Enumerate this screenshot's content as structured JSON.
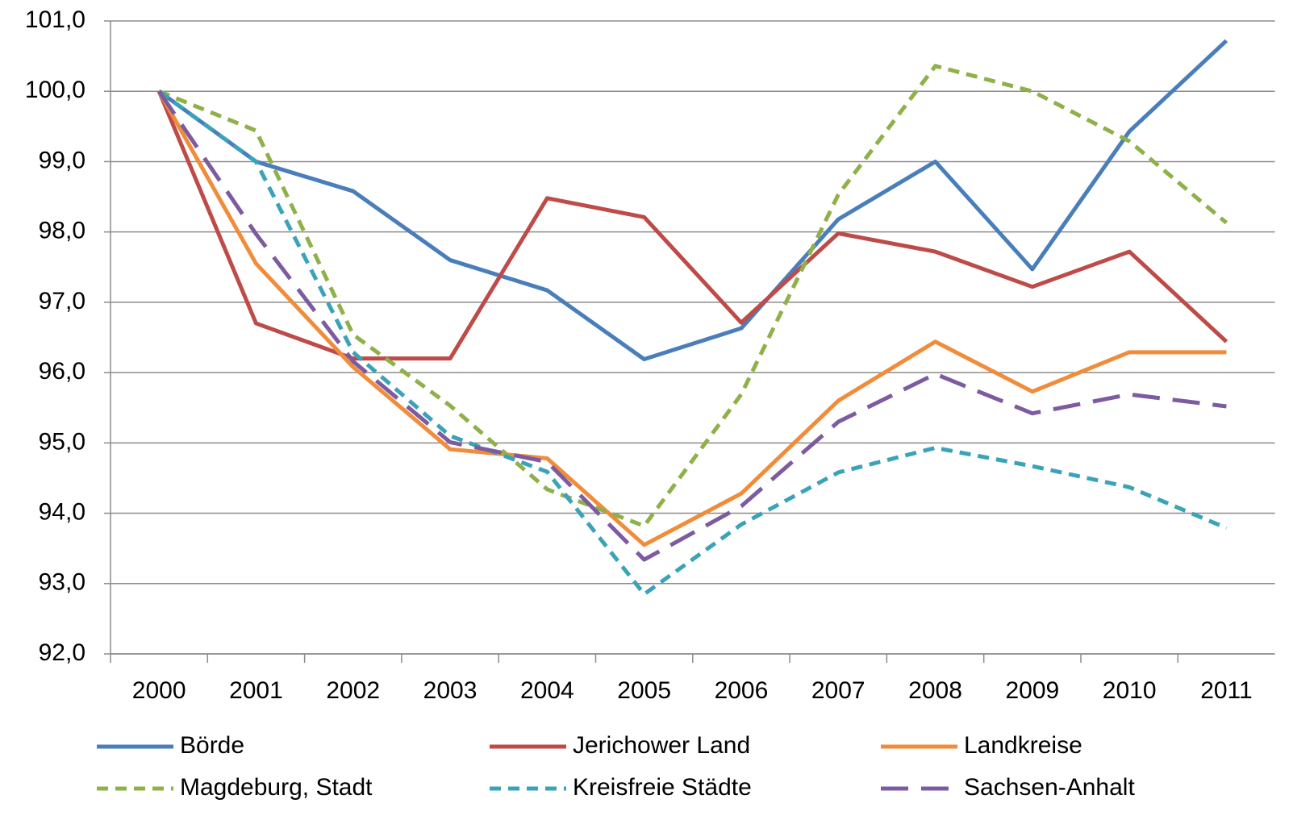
{
  "chart_data": {
    "type": "line",
    "categories": [
      "2000",
      "2001",
      "2002",
      "2003",
      "2004",
      "2005",
      "2006",
      "2007",
      "2008",
      "2009",
      "2010",
      "2011"
    ],
    "ylim": [
      92,
      101
    ],
    "yticks": [
      {
        "value": 92,
        "label": "92,0"
      },
      {
        "value": 93,
        "label": "93,0"
      },
      {
        "value": 94,
        "label": "94,0"
      },
      {
        "value": 95,
        "label": "95,0"
      },
      {
        "value": 96,
        "label": "96,0"
      },
      {
        "value": 97,
        "label": "97,0"
      },
      {
        "value": 98,
        "label": "98,0"
      },
      {
        "value": 99,
        "label": "99,0"
      },
      {
        "value": 100,
        "label": "100,0"
      },
      {
        "value": 101,
        "label": "101,0"
      }
    ],
    "grid": true,
    "legend": "bottom",
    "series": [
      {
        "name": "Börde",
        "color": "#4a7ebb",
        "dash": "solid",
        "values": [
          100,
          99.0,
          98.58,
          97.6,
          97.17,
          96.19,
          96.63,
          98.18,
          99.0,
          97.47,
          99.43,
          100.72
        ]
      },
      {
        "name": "Jerichower Land",
        "color": "#be4b48",
        "dash": "solid",
        "values": [
          100,
          96.7,
          96.2,
          96.2,
          98.48,
          98.21,
          96.71,
          97.98,
          97.72,
          97.22,
          97.72,
          96.44
        ]
      },
      {
        "name": "Landkreise",
        "color": "#f08c3a",
        "dash": "solid",
        "values": [
          100,
          97.55,
          96.08,
          94.91,
          94.78,
          93.55,
          94.28,
          95.6,
          96.44,
          95.73,
          96.29,
          96.29
        ]
      },
      {
        "name": "Magdeburg, Stadt",
        "color": "#8fb04a",
        "dash": "dashed",
        "values": [
          100,
          99.44,
          96.54,
          95.53,
          94.34,
          93.82,
          95.69,
          98.53,
          100.36,
          100.0,
          99.29,
          98.13
        ]
      },
      {
        "name": "Kreisfreie Städte",
        "color": "#3aa3b8",
        "dash": "dashed",
        "values": [
          100,
          99.0,
          96.29,
          95.1,
          94.59,
          92.85,
          93.84,
          94.58,
          94.93,
          94.67,
          94.37,
          93.79
        ]
      },
      {
        "name": "Sachsen-Anhalt",
        "color": "#7d5ba0",
        "dash": "long-dashed",
        "values": [
          100,
          97.97,
          96.16,
          95.01,
          94.73,
          93.34,
          94.1,
          95.3,
          95.98,
          95.42,
          95.69,
          95.52
        ]
      }
    ]
  }
}
